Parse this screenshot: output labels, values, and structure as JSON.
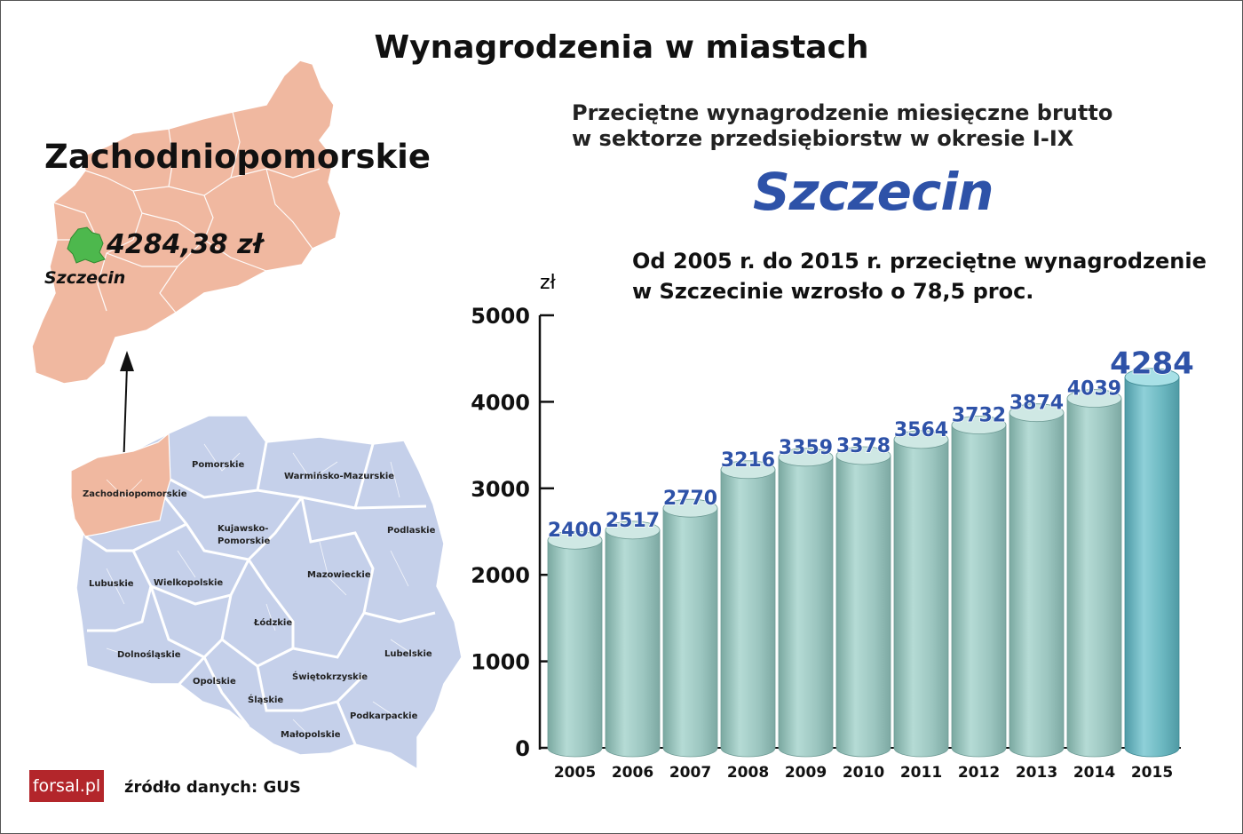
{
  "title": "Wynagrodzenia w miastach",
  "subtitle": {
    "line1": "Przeciętne wynagrodzenie miesięczne brutto",
    "line2": "w sektorze przedsiębiorstw w okresie I-IX"
  },
  "city": "Szczecin",
  "note": {
    "line1": "Od 2005 r. do 2015 r. przeciętne wynagrodzenie",
    "line2": "w Szczecinie wzrosło o 78,5 proc."
  },
  "region": {
    "name": "Zachodniopomorskie",
    "salary": "4284,38 zł",
    "city_label": "Szczecin"
  },
  "voivodeships": {
    "zachodniopomorskie": "Zachodniopomorskie",
    "pomorskie": "Pomorskie",
    "warminsko": "Warmińsko-Mazurskie",
    "kujawsko1": "Kujawsko-",
    "kujawsko2": "Pomorskie",
    "podlaskie": "Podlaskie",
    "lubuskie": "Lubuskie",
    "wielkopolskie": "Wielkopolskie",
    "mazowieckie": "Mazowieckie",
    "lodzkie": "Łódzkie",
    "dolnoslaskie": "Dolnośląskie",
    "lubelskie": "Lubelskie",
    "opolskie": "Opolskie",
    "swietokrzyskie": "Świętokrzyskie",
    "slaskie": "Śląskie",
    "podkarpackie": "Podkarpackie",
    "malopolskie": "Małopolskie"
  },
  "source": "źródło danych: GUS",
  "logo": "forsal.pl",
  "colors": {
    "region_fill": "#f0b8a0",
    "poland_fill": "#c5d0ea",
    "city_green": "#4db84d",
    "bar_fill": "#9fc9c3",
    "highlight_bar_fill": "#6bb7c0",
    "value_label": "#2e52a8",
    "logo_bg": "#b3262b"
  },
  "chart_data": {
    "type": "bar",
    "ylabel": "zł",
    "ylim": [
      0,
      5000
    ],
    "yticks": [
      0,
      1000,
      2000,
      3000,
      4000,
      5000
    ],
    "categories": [
      "2005",
      "2006",
      "2007",
      "2008",
      "2009",
      "2010",
      "2011",
      "2012",
      "2013",
      "2014",
      "2015"
    ],
    "values": [
      2400,
      2517,
      2770,
      3216,
      3359,
      3378,
      3564,
      3732,
      3874,
      4039,
      4284
    ],
    "labels": [
      "2400",
      "2517",
      "2770",
      "3216",
      "3359",
      "3378",
      "3564",
      "3732",
      "3874",
      "4039",
      "4284"
    ],
    "highlight": "2015",
    "grid": false,
    "legend": "none"
  }
}
